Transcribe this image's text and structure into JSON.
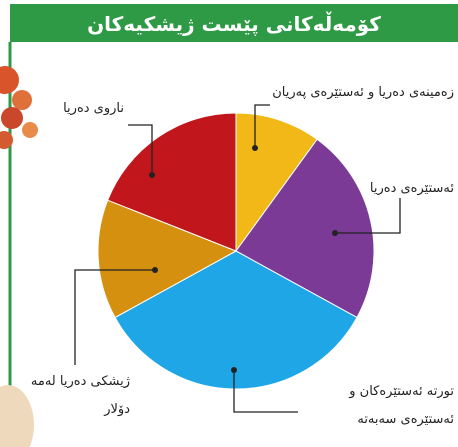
{
  "chart_data": {
    "type": "pie",
    "title": "کۆمەڵەکانی پێست ژیشکیەکان",
    "categories": [
      "زەمینەی دەریا و ئەستێرەی پەریان",
      "ئەستێرەی دەریا",
      "تورتە ئەستێرەکان و ئەستێرەی سەبەتە",
      "ژیشکی دەریا لەمە دۆلار",
      "ناروی دەریا"
    ],
    "values": [
      10,
      23,
      34,
      14,
      19
    ],
    "colors": [
      "#f2b817",
      "#7b3a96",
      "#1ea6e6",
      "#d4900e",
      "#c0161c"
    ]
  }
}
